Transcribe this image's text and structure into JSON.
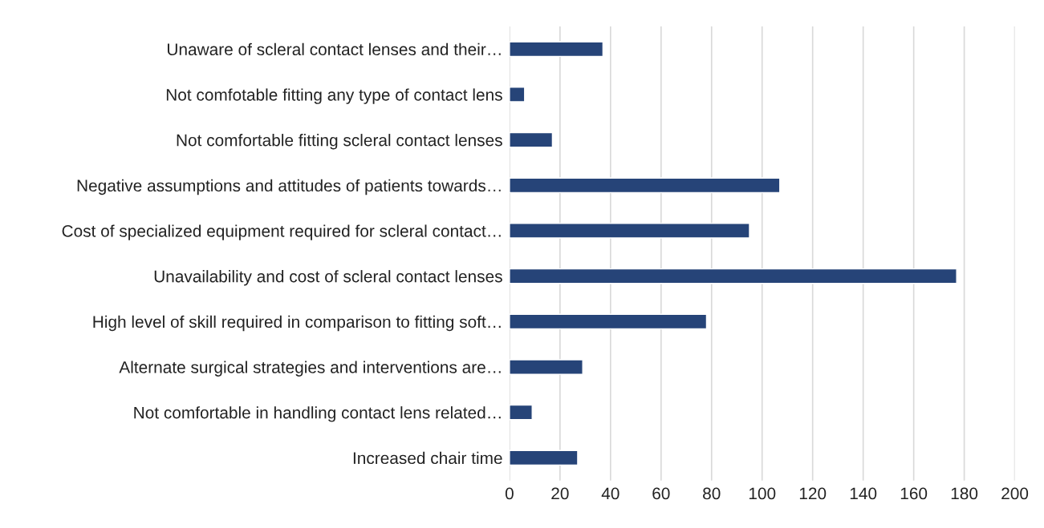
{
  "chart_data": {
    "type": "bar",
    "orientation": "horizontal",
    "categories": [
      "Unaware of scleral contact lenses and their…",
      "Not comfotable fitting any type of contact lens",
      "Not comfortable fitting scleral contact lenses",
      "Negative assumptions and attitudes of patients towards…",
      "Cost of specialized equipment required for scleral contact…",
      "Unavailability and cost of scleral contact lenses",
      "High level of skill required in comparison to fitting soft…",
      "Alternate surgical strategies and interventions are…",
      "Not comfortable in handling contact lens related…",
      "Increased chair time"
    ],
    "values": [
      37,
      6,
      17,
      107,
      95,
      177,
      78,
      29,
      9,
      27
    ],
    "color": "#264478",
    "xlim": [
      0,
      200
    ],
    "xticks": [
      0,
      20,
      40,
      60,
      80,
      100,
      120,
      140,
      160,
      180,
      200
    ],
    "grid": "x",
    "legend": false
  }
}
